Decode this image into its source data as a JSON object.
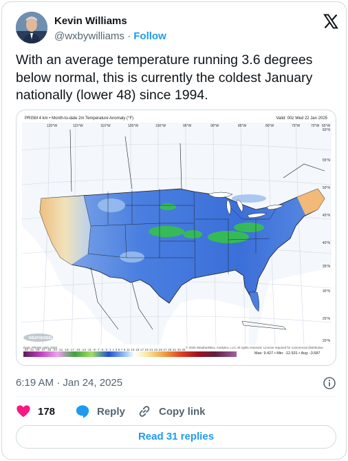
{
  "author": {
    "name": "Kevin Williams",
    "handle": "@wxbywilliams",
    "separator": " · ",
    "follow_label": "Follow"
  },
  "tweet": {
    "text": "With an average temperature running 3.6 degrees below normal, this is currently the coldest January nationally (lower 48) since 1994."
  },
  "map": {
    "header_left": "PRISM 4 km  •  Month-to-date 2m Temperature Anomaly (°F)",
    "header_right": "Valid: 00z Wed 22 Jan 2025",
    "credit_left": "Data: PRISM 1991-2020",
    "credit_right": "© 2025 WeatherBELL Analytics, LLC All rights reserved. License required for commercial distribution",
    "colorbar_labels": "-33 -31 -29 -27 -25 -23 -21 -19 -17 -15 -13 -11  -9  -7  -5  -3  -1   1   3   5   7   9  11  13  15  17  19  21  23  25  27  29  31  33  35",
    "stats": "Max: 9.427  •  Min: -12.531  •  Avg: -3.587",
    "lon_labels": [
      "120°W",
      "115°W",
      "110°W",
      "105°W",
      "100°W",
      "95°W",
      "90°W",
      "85°W",
      "80°W",
      "75°W",
      "70°W",
      "65°W"
    ],
    "lat_labels": [
      "60°N",
      "55°N",
      "50°N",
      "45°N",
      "40°N",
      "35°N",
      "30°N",
      "25°N",
      "20°N"
    ],
    "logo_text": "WEATHERBELL"
  },
  "meta": {
    "timestamp": "6:19 AM · Jan 24, 2025"
  },
  "actions": {
    "likes_count": "178",
    "reply_label": "Reply",
    "copy_link_label": "Copy link"
  },
  "replies_button": "Read 31 replies",
  "colors": {
    "accent": "#1d9bf0",
    "like": "#f91880",
    "muted": "#536471"
  }
}
